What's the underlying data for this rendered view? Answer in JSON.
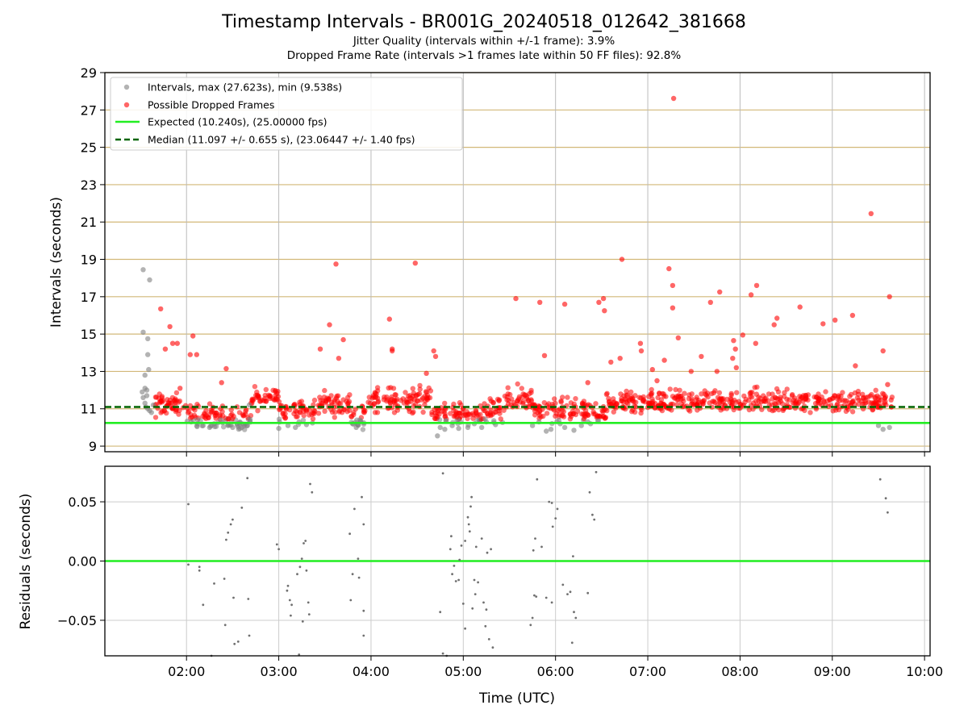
{
  "chart_data": [
    {
      "type": "scatter",
      "title": "Timestamp Intervals - BR001G_20240518_012642_381668",
      "subtitle_lines": [
        "Jitter Quality (intervals within +/-1 frame): 3.9%",
        "Dropped Frame Rate (intervals >1 frames late within 50 FF files): 92.8%"
      ],
      "ylabel": "Intervals (seconds)",
      "ylim": [
        8.7,
        29
      ],
      "yticks": [
        "9",
        "11",
        "13",
        "15",
        "17",
        "19",
        "21",
        "23",
        "25",
        "27",
        "29"
      ],
      "xlim_hours": [
        1.115,
        10.06
      ],
      "legend_position": "upper-left",
      "grid": "vertical gray at hourly ticks, horizontal tan at odd y ticks",
      "series": [
        {
          "name": "Intervals, max (27.623s), min (9.538s)",
          "color": "#808080",
          "kind": "scatter",
          "points": [
            [
              1.53,
              18.45
            ],
            [
              1.53,
              15.1
            ],
            [
              1.58,
              14.75
            ],
            [
              1.58,
              13.9
            ],
            [
              1.59,
              13.1
            ],
            [
              1.55,
              12.8
            ],
            [
              1.6,
              17.9
            ],
            [
              1.52,
              11.9
            ],
            [
              1.53,
              11.6
            ],
            [
              1.55,
              11.3
            ],
            [
              1.56,
              11.1
            ],
            [
              1.57,
              11.7
            ],
            [
              1.58,
              11.0
            ],
            [
              1.6,
              10.9
            ],
            [
              1.62,
              10.8
            ],
            [
              1.64,
              11.2
            ],
            [
              1.55,
              12.1
            ],
            [
              1.57,
              12.0
            ],
            [
              2.05,
              10.3
            ],
            [
              2.12,
              10.2
            ],
            [
              2.18,
              10.1
            ],
            [
              2.25,
              10.0
            ],
            [
              2.3,
              10.2
            ],
            [
              2.37,
              10.4
            ],
            [
              2.45,
              10.1
            ],
            [
              2.5,
              10.0
            ],
            [
              2.55,
              10.2
            ],
            [
              2.6,
              10.0
            ],
            [
              2.66,
              10.1
            ],
            [
              2.68,
              11.2
            ],
            [
              3.0,
              9.95
            ],
            [
              3.1,
              10.1
            ],
            [
              3.18,
              10.0
            ],
            [
              3.22,
              10.3
            ],
            [
              3.3,
              10.15
            ],
            [
              3.8,
              10.2
            ],
            [
              3.84,
              10.0
            ],
            [
              3.88,
              10.4
            ],
            [
              4.72,
              9.55
            ],
            [
              4.75,
              10.0
            ],
            [
              4.8,
              9.9
            ],
            [
              4.88,
              10.1
            ],
            [
              4.95,
              9.95
            ],
            [
              5.05,
              10.0
            ],
            [
              5.12,
              10.2
            ],
            [
              5.2,
              10.0
            ],
            [
              5.25,
              10.3
            ],
            [
              5.35,
              10.15
            ],
            [
              5.75,
              10.1
            ],
            [
              5.82,
              10.3
            ],
            [
              5.9,
              9.8
            ],
            [
              5.95,
              9.9
            ],
            [
              6.05,
              10.2
            ],
            [
              6.1,
              10.0
            ],
            [
              6.2,
              9.85
            ],
            [
              6.28,
              10.1
            ],
            [
              6.35,
              10.3
            ],
            [
              6.38,
              10.2
            ],
            [
              9.5,
              10.1
            ],
            [
              9.55,
              9.9
            ],
            [
              9.62,
              10.0
            ]
          ]
        },
        {
          "name": "Possible Dropped Frames",
          "color": "#ff0000",
          "kind": "scatter",
          "points": [
            [
              1.72,
              16.35
            ],
            [
              1.77,
              14.2
            ],
            [
              1.82,
              15.4
            ],
            [
              1.85,
              14.5
            ],
            [
              1.9,
              14.5
            ],
            [
              1.93,
              12.1
            ],
            [
              2.04,
              13.9
            ],
            [
              2.07,
              14.9
            ],
            [
              2.11,
              13.9
            ],
            [
              2.43,
              13.15
            ],
            [
              2.38,
              12.4
            ],
            [
              3.55,
              15.5
            ],
            [
              3.62,
              18.75
            ],
            [
              3.65,
              13.7
            ],
            [
              3.7,
              14.7
            ],
            [
              3.45,
              14.2
            ],
            [
              4.2,
              15.8
            ],
            [
              4.23,
              14.2
            ],
            [
              4.23,
              14.1
            ],
            [
              4.48,
              18.8
            ],
            [
              4.68,
              14.1
            ],
            [
              4.7,
              13.8
            ],
            [
              4.6,
              12.9
            ],
            [
              5.57,
              16.9
            ],
            [
              5.83,
              16.7
            ],
            [
              5.88,
              13.85
            ],
            [
              6.1,
              16.6
            ],
            [
              6.35,
              12.4
            ],
            [
              6.47,
              16.7
            ],
            [
              6.52,
              16.9
            ],
            [
              6.53,
              16.25
            ],
            [
              6.6,
              13.5
            ],
            [
              6.72,
              19.0
            ],
            [
              6.7,
              13.7
            ],
            [
              6.92,
              14.5
            ],
            [
              6.93,
              14.1
            ],
            [
              7.05,
              13.1
            ],
            [
              7.1,
              12.5
            ],
            [
              7.18,
              13.6
            ],
            [
              7.23,
              18.5
            ],
            [
              7.27,
              17.6
            ],
            [
              7.27,
              16.4
            ],
            [
              7.28,
              27.62
            ],
            [
              7.33,
              14.8
            ],
            [
              7.47,
              13.0
            ],
            [
              7.58,
              13.8
            ],
            [
              7.68,
              16.7
            ],
            [
              7.75,
              13.0
            ],
            [
              7.78,
              17.25
            ],
            [
              7.92,
              13.7
            ],
            [
              7.93,
              14.65
            ],
            [
              7.95,
              14.2
            ],
            [
              7.96,
              13.2
            ],
            [
              8.03,
              14.95
            ],
            [
              8.12,
              17.1
            ],
            [
              8.18,
              17.6
            ],
            [
              8.17,
              14.5
            ],
            [
              8.37,
              15.5
            ],
            [
              8.4,
              15.85
            ],
            [
              8.65,
              16.45
            ],
            [
              8.9,
              15.55
            ],
            [
              9.03,
              15.75
            ],
            [
              9.22,
              16.0
            ],
            [
              9.25,
              13.3
            ],
            [
              9.42,
              21.45
            ],
            [
              9.55,
              14.1
            ],
            [
              9.62,
              17.0
            ],
            [
              9.6,
              12.3
            ]
          ]
        },
        {
          "name": "Expected (10.240s), (25.00000 fps)",
          "color": "#22ee22",
          "kind": "hline",
          "y": 10.24
        },
        {
          "name": "Median (11.097 +/- 0.655 s), (23.06447 +/- 1.40 fps)",
          "color": "#006400",
          "kind": "hline-dashed",
          "y": 11.097
        }
      ],
      "dense_band_segments": [
        [
          1.63,
          2.0,
          11.2,
          0.55
        ],
        [
          2.0,
          2.4,
          10.65,
          0.55
        ],
        [
          2.4,
          2.7,
          10.4,
          0.55
        ],
        [
          2.7,
          3.0,
          11.6,
          0.55
        ],
        [
          3.0,
          3.4,
          10.9,
          0.55
        ],
        [
          3.4,
          3.78,
          11.3,
          0.55
        ],
        [
          3.78,
          3.95,
          10.6,
          0.55
        ],
        [
          3.95,
          4.65,
          11.5,
          0.6
        ],
        [
          4.65,
          5.2,
          10.7,
          0.5
        ],
        [
          5.2,
          5.45,
          10.9,
          0.55
        ],
        [
          5.45,
          5.75,
          11.5,
          0.6
        ],
        [
          5.75,
          6.05,
          10.8,
          0.6
        ],
        [
          6.05,
          6.35,
          10.9,
          0.6
        ],
        [
          6.35,
          6.55,
          10.7,
          0.55
        ],
        [
          6.55,
          9.65,
          11.4,
          0.55
        ]
      ]
    },
    {
      "type": "scatter",
      "ylabel": "Residuals (seconds)",
      "xlabel": "Time (UTC)",
      "ylim": [
        -0.08,
        0.08
      ],
      "yticks": [
        "0.05",
        "0.00",
        "−0.05"
      ],
      "xticks": [
        "02:00",
        "03:00",
        "04:00",
        "05:00",
        "06:00",
        "07:00",
        "08:00",
        "09:00",
        "10:00"
      ],
      "reference_line": {
        "y": 0.0,
        "color": "#22ee22"
      },
      "series": [
        {
          "name": "residuals",
          "color": "#707070",
          "points": [
            [
              2.02,
              0.048
            ],
            [
              2.02,
              -0.003
            ],
            [
              2.14,
              -0.005
            ],
            [
              2.14,
              -0.008
            ],
            [
              2.18,
              -0.037
            ],
            [
              2.27,
              -0.08
            ],
            [
              2.3,
              -0.019
            ],
            [
              2.41,
              -0.015
            ],
            [
              2.42,
              -0.054
            ],
            [
              2.43,
              0.018
            ],
            [
              2.45,
              0.024
            ],
            [
              2.48,
              0.031
            ],
            [
              2.5,
              0.035
            ],
            [
              2.51,
              -0.031
            ],
            [
              2.52,
              -0.07
            ],
            [
              2.56,
              -0.068
            ],
            [
              2.6,
              0.045
            ],
            [
              2.66,
              0.07
            ],
            [
              2.67,
              -0.032
            ],
            [
              2.68,
              -0.063
            ],
            [
              2.98,
              0.014
            ],
            [
              3.0,
              0.01
            ],
            [
              3.09,
              -0.025
            ],
            [
              3.1,
              -0.021
            ],
            [
              3.12,
              -0.033
            ],
            [
              3.13,
              -0.046
            ],
            [
              3.14,
              -0.037
            ],
            [
              3.2,
              -0.011
            ],
            [
              3.22,
              -0.079
            ],
            [
              3.23,
              -0.005
            ],
            [
              3.25,
              0.002
            ],
            [
              3.26,
              -0.051
            ],
            [
              3.27,
              0.015
            ],
            [
              3.29,
              0.017
            ],
            [
              3.3,
              -0.008
            ],
            [
              3.32,
              -0.035
            ],
            [
              3.33,
              -0.045
            ],
            [
              3.34,
              0.065
            ],
            [
              3.36,
              0.058
            ],
            [
              3.77,
              0.023
            ],
            [
              3.78,
              -0.033
            ],
            [
              3.8,
              -0.011
            ],
            [
              3.82,
              0.044
            ],
            [
              3.86,
              0.002
            ],
            [
              3.87,
              -0.014
            ],
            [
              3.9,
              0.054
            ],
            [
              3.92,
              0.031
            ],
            [
              3.92,
              -0.042
            ],
            [
              3.92,
              -0.063
            ],
            [
              4.75,
              -0.043
            ],
            [
              4.78,
              0.074
            ],
            [
              4.78,
              -0.078
            ],
            [
              4.82,
              -0.08
            ],
            [
              4.86,
              0.01
            ],
            [
              4.87,
              0.021
            ],
            [
              4.88,
              -0.011
            ],
            [
              4.9,
              -0.004
            ],
            [
              4.92,
              -0.017
            ],
            [
              4.95,
              -0.016
            ],
            [
              4.96,
              0.001
            ],
            [
              4.98,
              0.013
            ],
            [
              5.0,
              -0.036
            ],
            [
              5.02,
              0.017
            ],
            [
              5.02,
              -0.057
            ],
            [
              5.05,
              0.037
            ],
            [
              5.06,
              0.031
            ],
            [
              5.07,
              0.025
            ],
            [
              5.08,
              0.046
            ],
            [
              5.09,
              0.054
            ],
            [
              5.1,
              -0.04
            ],
            [
              5.12,
              -0.016
            ],
            [
              5.13,
              -0.028
            ],
            [
              5.14,
              0.012
            ],
            [
              5.16,
              -0.018
            ],
            [
              5.2,
              0.019
            ],
            [
              5.22,
              -0.035
            ],
            [
              5.24,
              -0.055
            ],
            [
              5.25,
              -0.041
            ],
            [
              5.26,
              0.007
            ],
            [
              5.28,
              -0.066
            ],
            [
              5.3,
              0.01
            ],
            [
              5.32,
              -0.073
            ],
            [
              5.73,
              -0.054
            ],
            [
              5.75,
              -0.048
            ],
            [
              5.76,
              0.009
            ],
            [
              5.77,
              -0.029
            ],
            [
              5.8,
              0.069
            ],
            [
              5.78,
              0.019
            ],
            [
              5.79,
              -0.03
            ],
            [
              5.85,
              0.012
            ],
            [
              5.9,
              -0.031
            ],
            [
              5.93,
              0.05
            ],
            [
              5.96,
              0.049
            ],
            [
              5.96,
              -0.035
            ],
            [
              5.97,
              0.029
            ],
            [
              6.0,
              0.036
            ],
            [
              6.02,
              0.044
            ],
            [
              6.08,
              -0.02
            ],
            [
              6.13,
              -0.028
            ],
            [
              6.16,
              -0.026
            ],
            [
              6.18,
              -0.069
            ],
            [
              6.19,
              0.004
            ],
            [
              6.2,
              -0.043
            ],
            [
              6.22,
              -0.048
            ],
            [
              6.35,
              -0.027
            ],
            [
              6.37,
              0.058
            ],
            [
              6.4,
              0.039
            ],
            [
              6.42,
              0.035
            ],
            [
              6.44,
              0.075
            ],
            [
              9.52,
              0.069
            ],
            [
              9.58,
              0.053
            ],
            [
              9.6,
              0.041
            ]
          ]
        }
      ]
    }
  ]
}
